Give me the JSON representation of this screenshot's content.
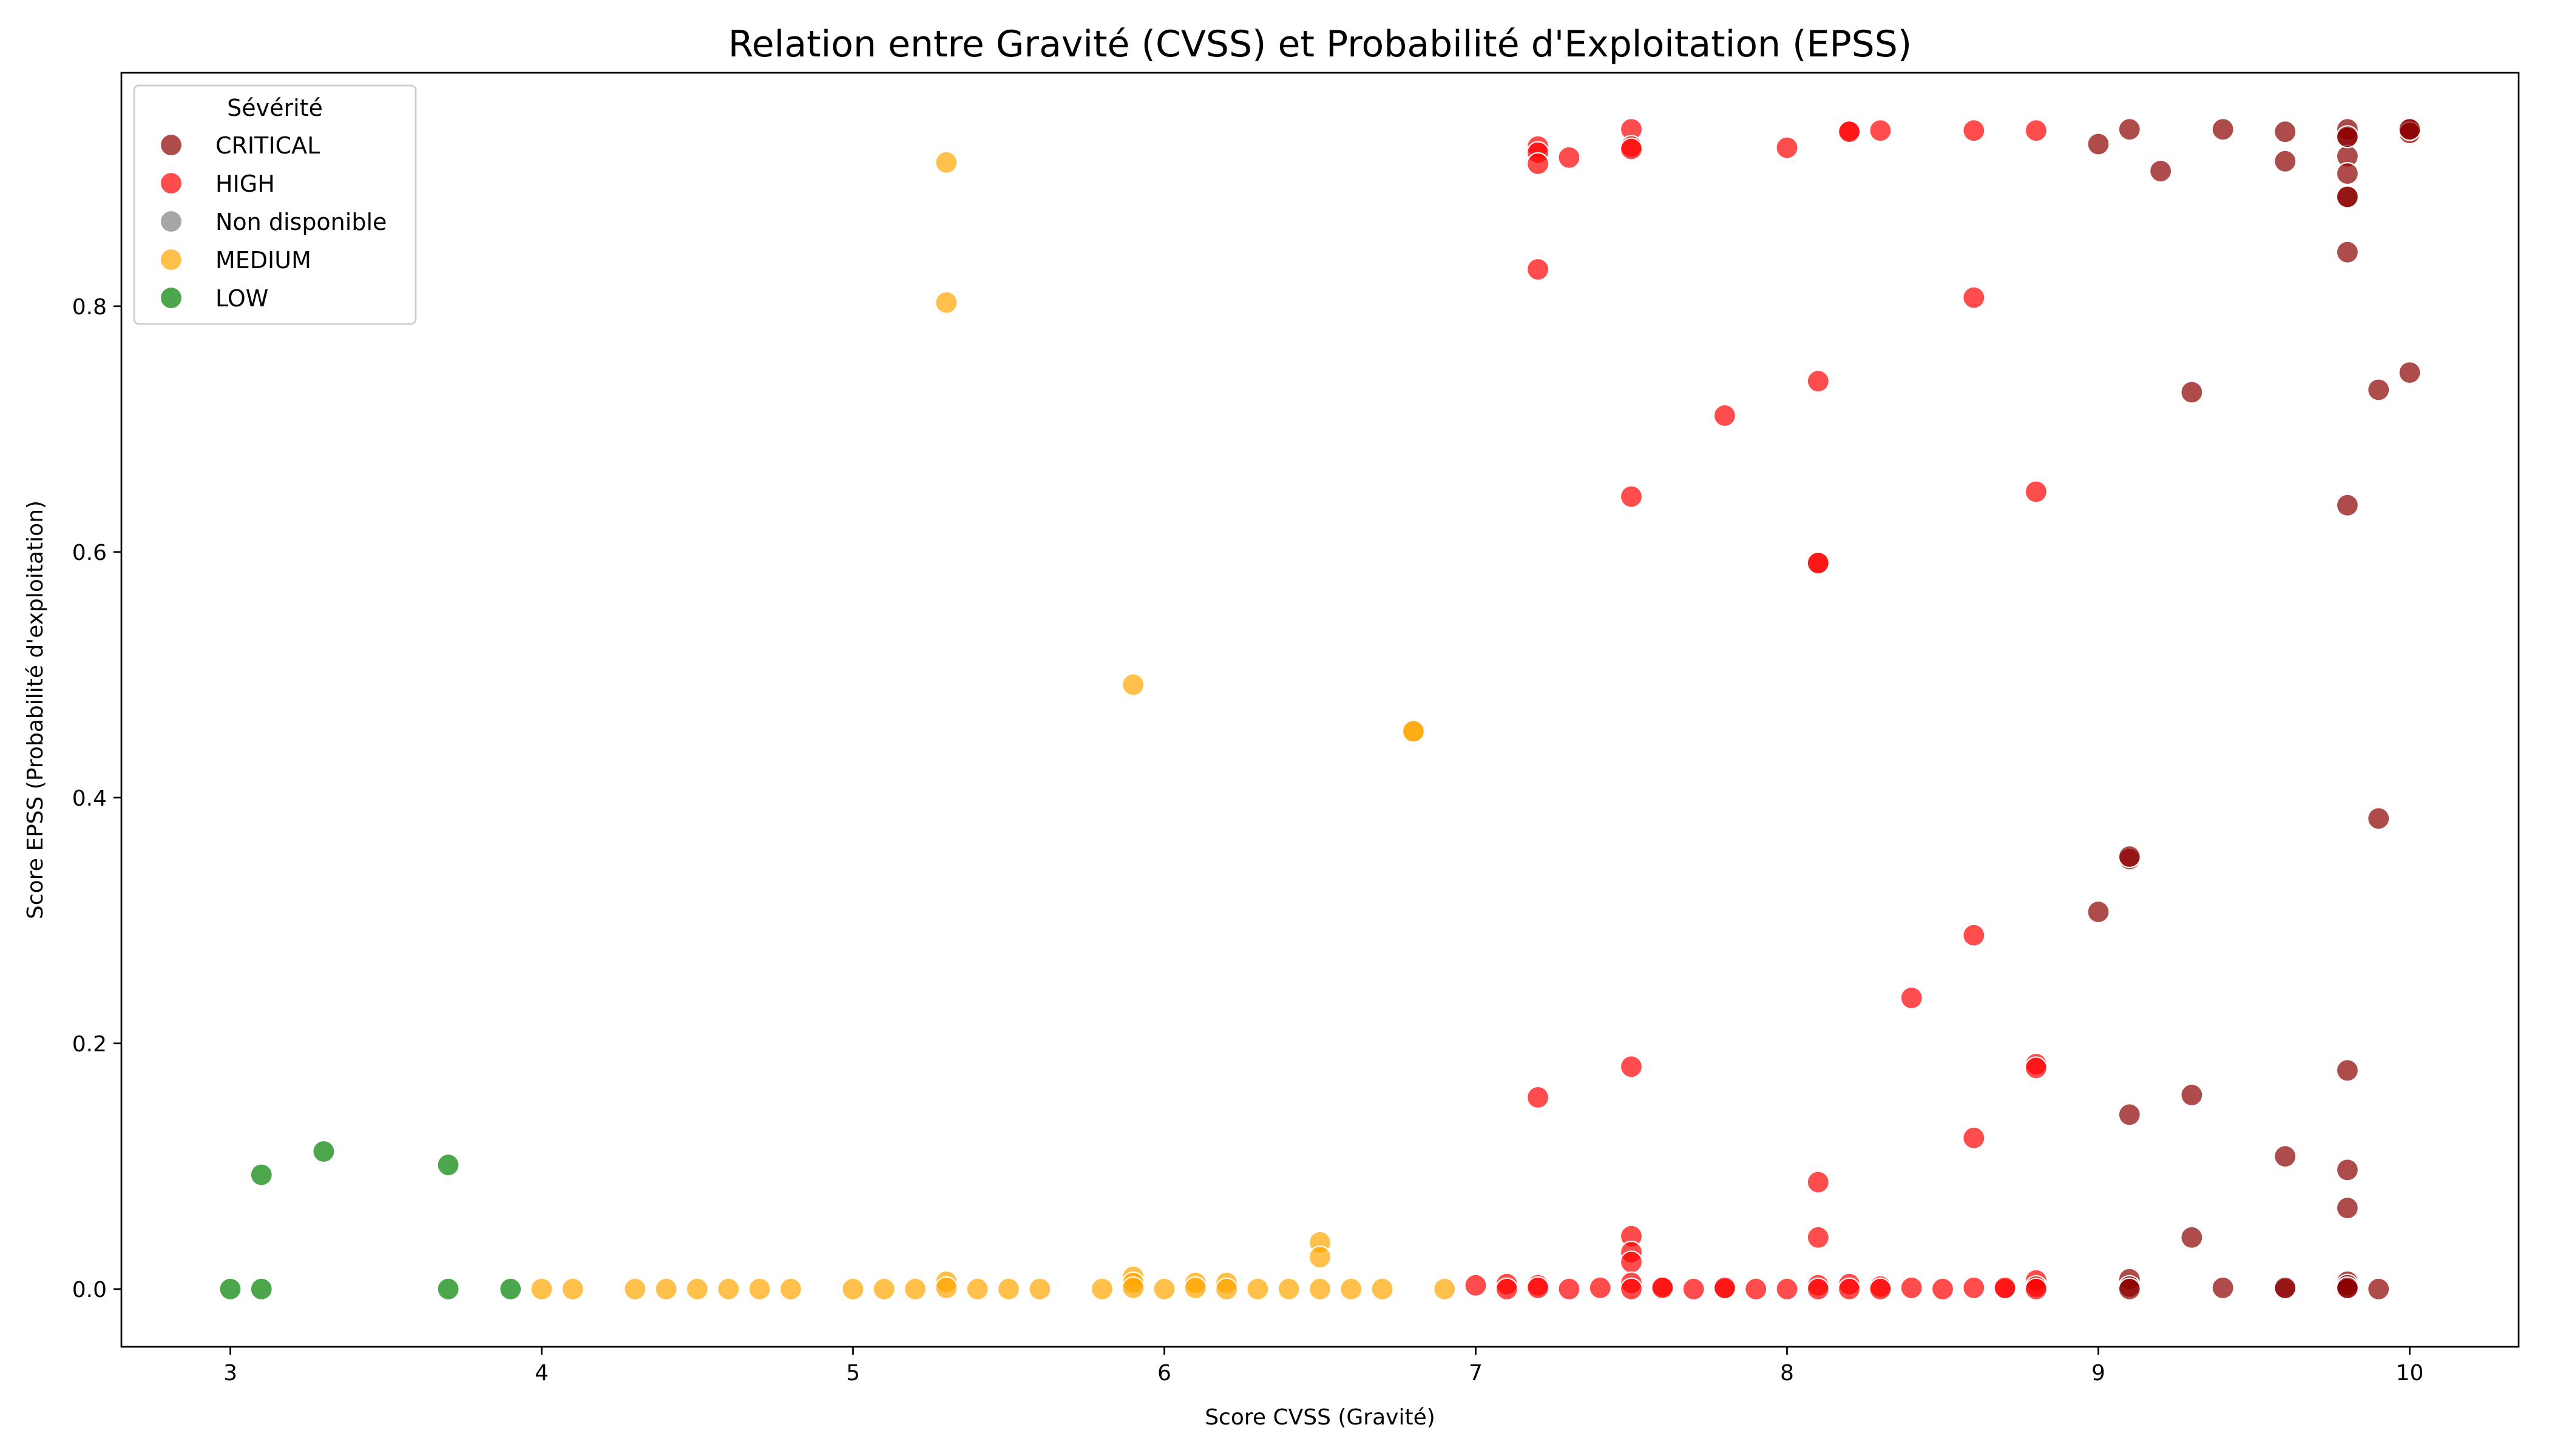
{
  "chart_data": {
    "type": "scatter",
    "title": "Relation entre Gravité (CVSS) et Probabilité d'Exploitation (EPSS)",
    "xlabel": "Score CVSS (Gravité)",
    "ylabel": "Score EPSS (Probabilité d'exploitation)",
    "xlim": [
      2.65,
      10.35
    ],
    "ylim": [
      -0.047,
      0.99
    ],
    "xticks": [
      3,
      4,
      5,
      6,
      7,
      8,
      9,
      10
    ],
    "yticks": [
      0.0,
      0.2,
      0.4,
      0.6,
      0.8
    ],
    "ytick_labels": [
      "0.0",
      "0.2",
      "0.4",
      "0.6",
      "0.8"
    ],
    "grid": false,
    "legend": {
      "title": "Sévérité",
      "placement": "top-left"
    },
    "point_alpha": 0.7,
    "series": [
      {
        "name": "CRITICAL",
        "color": "#8b0000",
        "points": [
          [
            9.0,
            0.932
          ],
          [
            9.1,
            0.944
          ],
          [
            9.2,
            0.91
          ],
          [
            9.4,
            0.944
          ],
          [
            9.6,
            0.942
          ],
          [
            9.6,
            0.918
          ],
          [
            9.8,
            0.944
          ],
          [
            9.8,
            0.937
          ],
          [
            9.8,
            0.922
          ],
          [
            9.8,
            0.908
          ],
          [
            9.8,
            0.889
          ],
          [
            9.8,
            0.889
          ],
          [
            9.8,
            0.844
          ],
          [
            9.8,
            0.938
          ],
          [
            10.0,
            0.944
          ],
          [
            10.0,
            0.941
          ],
          [
            10.0,
            0.944
          ],
          [
            9.3,
            0.73
          ],
          [
            9.9,
            0.732
          ],
          [
            10.0,
            0.746
          ],
          [
            9.8,
            0.638
          ],
          [
            9.9,
            0.383
          ],
          [
            9.1,
            0.35
          ],
          [
            9.1,
            0.352
          ],
          [
            9.0,
            0.307
          ],
          [
            9.8,
            0.178
          ],
          [
            9.3,
            0.158
          ],
          [
            9.1,
            0.142
          ],
          [
            9.6,
            0.108
          ],
          [
            9.8,
            0.097
          ],
          [
            9.8,
            0.066
          ],
          [
            9.3,
            0.042
          ],
          [
            9.1,
            0.008
          ],
          [
            9.1,
            0.002
          ],
          [
            9.1,
            0.0
          ],
          [
            9.4,
            0.001
          ],
          [
            9.6,
            0.0
          ],
          [
            9.6,
            0.001
          ],
          [
            9.8,
            0.006
          ],
          [
            9.8,
            0.003
          ],
          [
            9.8,
            0.0
          ],
          [
            9.8,
            0.001
          ],
          [
            9.9,
            0.0
          ]
        ]
      },
      {
        "name": "HIGH",
        "color": "#ff0000",
        "points": [
          [
            7.2,
            0.93
          ],
          [
            7.2,
            0.925
          ],
          [
            7.2,
            0.916
          ],
          [
            7.3,
            0.921
          ],
          [
            7.5,
            0.944
          ],
          [
            7.5,
            0.93
          ],
          [
            7.5,
            0.928
          ],
          [
            8.0,
            0.929
          ],
          [
            8.2,
            0.943
          ],
          [
            8.2,
            0.942
          ],
          [
            8.3,
            0.943
          ],
          [
            8.6,
            0.943
          ],
          [
            8.8,
            0.943
          ],
          [
            7.2,
            0.83
          ],
          [
            8.6,
            0.807
          ],
          [
            8.1,
            0.739
          ],
          [
            7.8,
            0.711
          ],
          [
            7.5,
            0.645
          ],
          [
            8.8,
            0.649
          ],
          [
            8.1,
            0.591
          ],
          [
            8.1,
            0.591
          ],
          [
            8.6,
            0.288
          ],
          [
            8.4,
            0.237
          ],
          [
            8.8,
            0.183
          ],
          [
            8.8,
            0.18
          ],
          [
            7.5,
            0.181
          ],
          [
            7.2,
            0.156
          ],
          [
            8.6,
            0.123
          ],
          [
            8.1,
            0.087
          ],
          [
            7.5,
            0.043
          ],
          [
            8.1,
            0.042
          ],
          [
            7.5,
            0.03
          ],
          [
            7.5,
            0.022
          ],
          [
            7.0,
            0.003
          ],
          [
            7.1,
            0.004
          ],
          [
            7.1,
            0.0
          ],
          [
            7.2,
            0.003
          ],
          [
            7.2,
            0.001
          ],
          [
            7.3,
            0.0
          ],
          [
            7.4,
            0.001
          ],
          [
            7.5,
            0.005
          ],
          [
            7.5,
            0.0
          ],
          [
            7.6,
            0.002
          ],
          [
            7.6,
            0.001
          ],
          [
            7.7,
            0.0
          ],
          [
            7.8,
            0.0
          ],
          [
            7.8,
            0.001
          ],
          [
            7.9,
            0.0
          ],
          [
            8.0,
            0.0
          ],
          [
            8.1,
            0.003
          ],
          [
            8.1,
            0.0
          ],
          [
            8.2,
            0.004
          ],
          [
            8.2,
            0.0
          ],
          [
            8.3,
            0.002
          ],
          [
            8.3,
            0.0
          ],
          [
            8.4,
            0.001
          ],
          [
            8.5,
            0.0
          ],
          [
            8.6,
            0.001
          ],
          [
            8.7,
            0.0
          ],
          [
            8.7,
            0.001
          ],
          [
            8.8,
            0.007
          ],
          [
            8.8,
            0.002
          ],
          [
            8.8,
            0.0
          ]
        ]
      },
      {
        "name": "Non disponible",
        "color": "#808080",
        "points": []
      },
      {
        "name": "MEDIUM",
        "color": "#ffa500",
        "points": [
          [
            5.3,
            0.917
          ],
          [
            5.3,
            0.803
          ],
          [
            5.9,
            0.492
          ],
          [
            6.8,
            0.454
          ],
          [
            6.8,
            0.454
          ],
          [
            6.5,
            0.038
          ],
          [
            6.5,
            0.026
          ],
          [
            5.9,
            0.01
          ],
          [
            5.9,
            0.005
          ],
          [
            5.3,
            0.006
          ],
          [
            6.1,
            0.005
          ],
          [
            6.2,
            0.005
          ],
          [
            4.0,
            0.0
          ],
          [
            4.1,
            0.0
          ],
          [
            4.3,
            0.0
          ],
          [
            4.4,
            0.0
          ],
          [
            4.5,
            0.0
          ],
          [
            4.6,
            0.0
          ],
          [
            4.7,
            0.0
          ],
          [
            4.8,
            0.0
          ],
          [
            5.0,
            0.0
          ],
          [
            5.1,
            0.0
          ],
          [
            5.2,
            0.0
          ],
          [
            5.3,
            0.001
          ],
          [
            5.4,
            0.0
          ],
          [
            5.5,
            0.0
          ],
          [
            5.6,
            0.0
          ],
          [
            5.8,
            0.0
          ],
          [
            5.9,
            0.001
          ],
          [
            6.0,
            0.0
          ],
          [
            6.1,
            0.001
          ],
          [
            6.2,
            0.0
          ],
          [
            6.3,
            0.0
          ],
          [
            6.4,
            0.0
          ],
          [
            6.5,
            0.0
          ],
          [
            6.6,
            0.0
          ],
          [
            6.7,
            0.0
          ],
          [
            6.9,
            0.0
          ]
        ]
      },
      {
        "name": "LOW",
        "color": "#008000",
        "points": [
          [
            3.1,
            0.093
          ],
          [
            3.3,
            0.112
          ],
          [
            3.7,
            0.101
          ],
          [
            3.0,
            0.0
          ],
          [
            3.1,
            0.0
          ],
          [
            3.7,
            0.0
          ],
          [
            3.9,
            0.0
          ]
        ]
      }
    ]
  }
}
